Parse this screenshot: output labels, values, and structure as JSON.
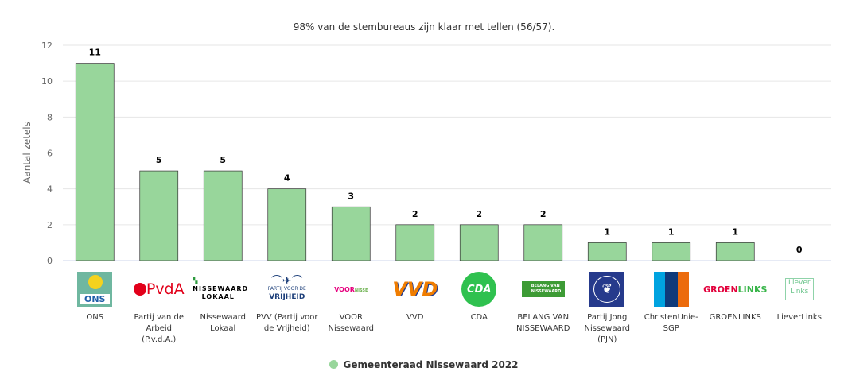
{
  "chart_data": {
    "type": "bar",
    "title": "98% van de stembureaus zijn klaar met tellen (56/57).",
    "ylabel": "Aantal zetels",
    "xlabel": "",
    "ylim": [
      0,
      12
    ],
    "yticks": [
      0,
      2,
      4,
      6,
      8,
      10,
      12
    ],
    "grid": true,
    "legend_position": "bottom",
    "categories": [
      "ONS",
      "Partij van de Arbeid (P.v.d.A.)",
      "Nissewaard Lokaal",
      "PVV (Partij voor de Vrijheid)",
      "VOOR Nissewaard",
      "VVD",
      "CDA",
      "BELANG VAN NISSEWAARD",
      "Partij Jong Nissewaard (PJN)",
      "ChristenUnie-SGP",
      "GROENLINKS",
      "LieverLinks"
    ],
    "category_lines": [
      [
        "ONS"
      ],
      [
        "Partij van de",
        "Arbeid",
        "(P.v.d.A.)"
      ],
      [
        "Nissewaard",
        "Lokaal"
      ],
      [
        "PVV (Partij voor",
        "de Vrijheid)"
      ],
      [
        "VOOR",
        "Nissewaard"
      ],
      [
        "VVD"
      ],
      [
        "CDA"
      ],
      [
        "BELANG VAN",
        "NISSEWAARD"
      ],
      [
        "Partij Jong",
        "Nissewaard",
        "(PJN)"
      ],
      [
        "ChristenUnie-",
        "SGP"
      ],
      [
        "GROENLINKS"
      ],
      [
        "LieverLinks"
      ]
    ],
    "series": [
      {
        "name": "Gemeenteraad Nissewaard 2022",
        "values": [
          11,
          5,
          5,
          4,
          3,
          2,
          2,
          2,
          1,
          1,
          1,
          0
        ],
        "color": "#98d69b"
      }
    ]
  },
  "logos": {
    "pvda": "PvdA",
    "nl1": "NISSEWAARD",
    "nl2": "LOKAAL",
    "pvv1": "PARTIJ VOOR DE",
    "pvv2": "VRIJHEID",
    "voor": "VOOR",
    "vvd": "VVD",
    "cda": "CDA",
    "bvn1": "BELANG VAN",
    "bvn2": "NISSEWAARD",
    "gl1": "GROEN",
    "gl2": "LINKS",
    "ll1": "Liever",
    "ll2": "Links",
    "ons": "ONS"
  }
}
